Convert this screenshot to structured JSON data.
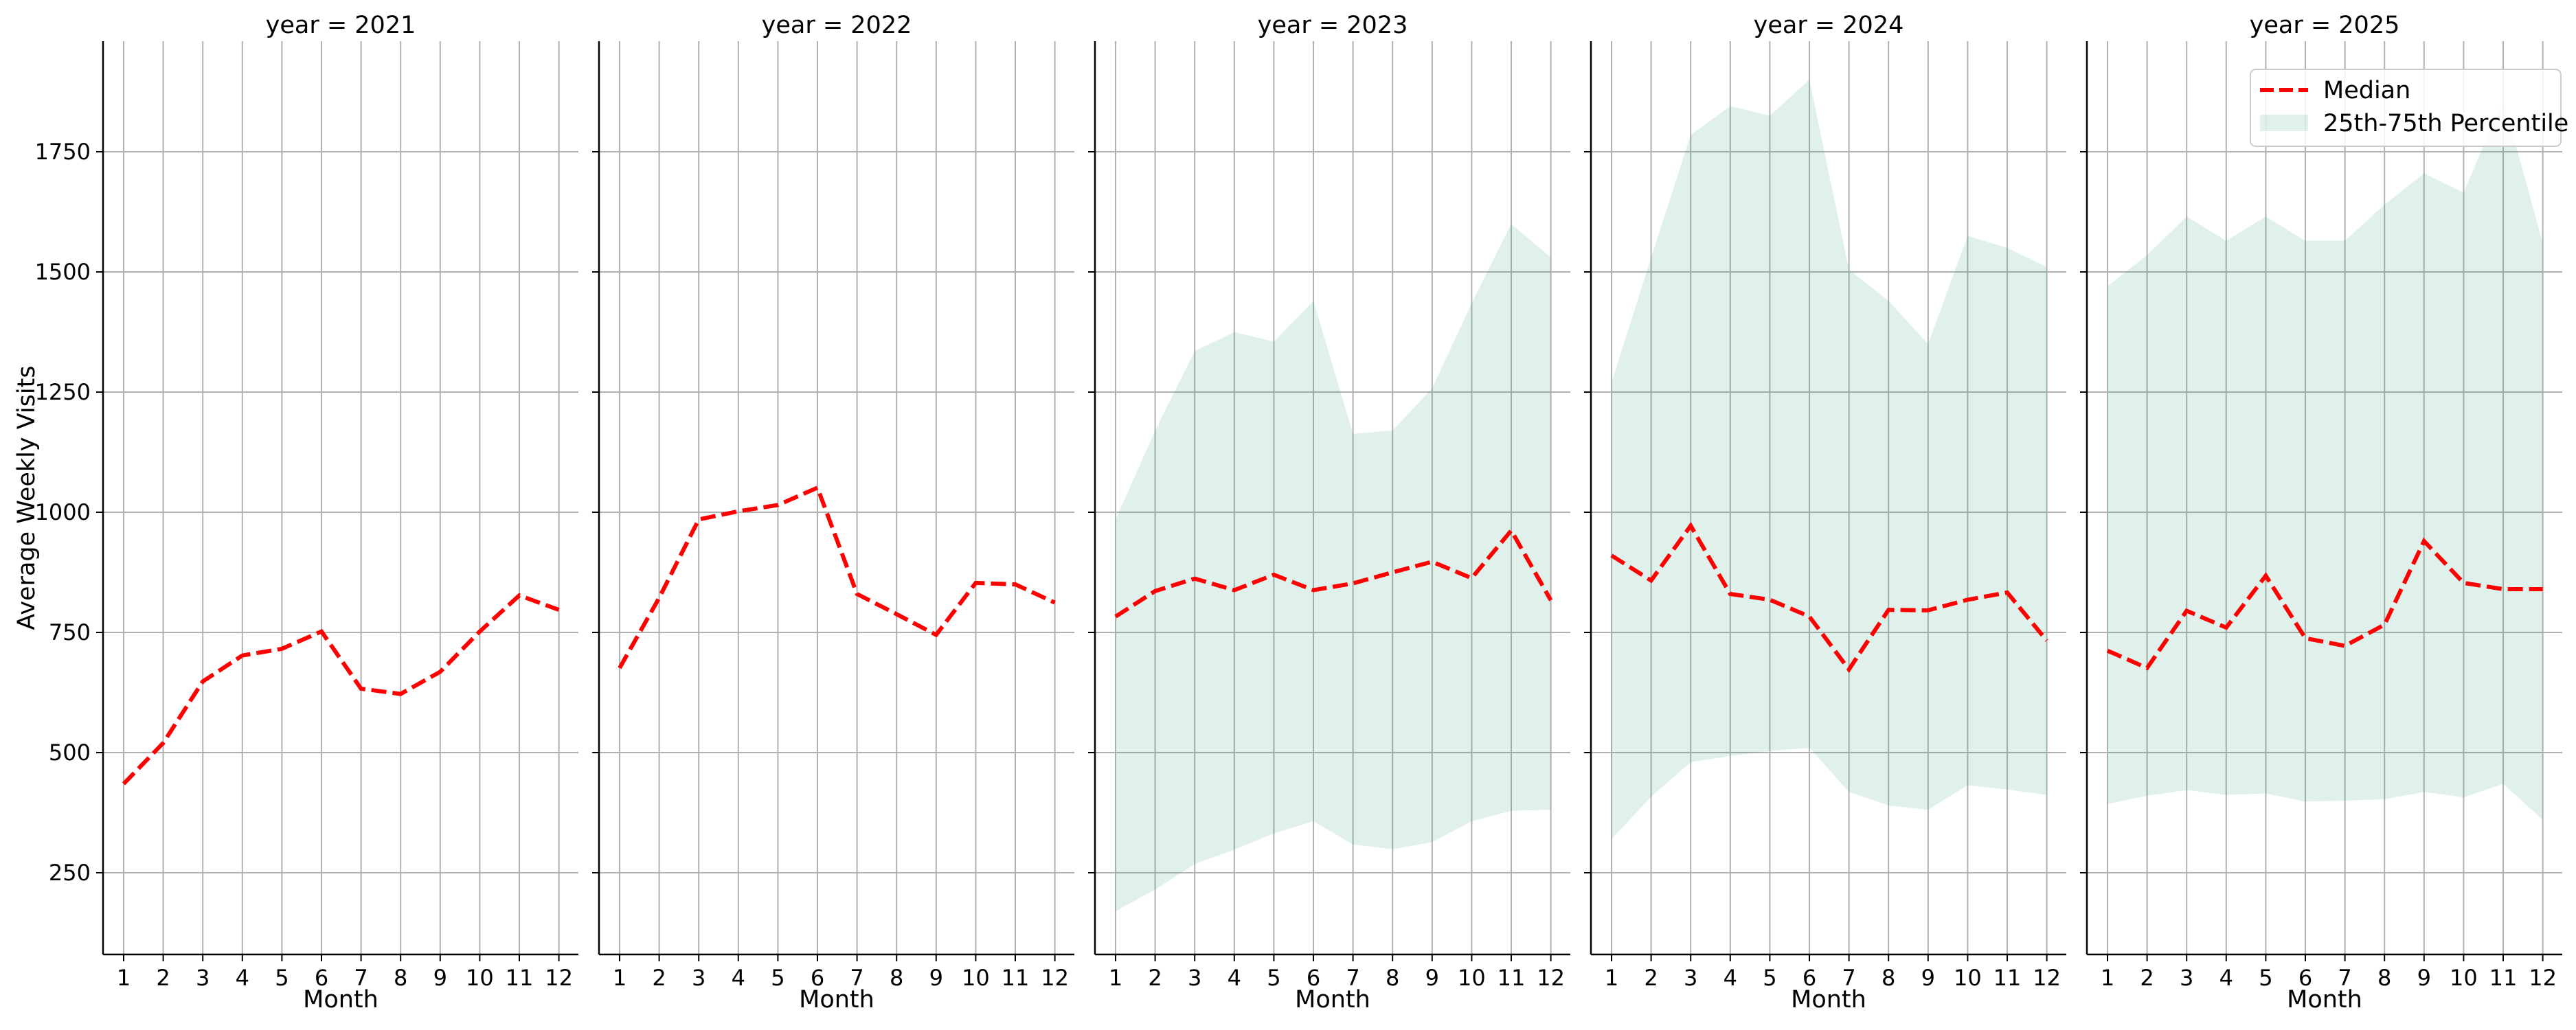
{
  "chart_data": {
    "type": "line",
    "ylabel": "Average Weekly Visits",
    "xlabel": "Month",
    "x": [
      1,
      2,
      3,
      4,
      5,
      6,
      7,
      8,
      9,
      10,
      11,
      12
    ],
    "ylim": [
      80,
      1980
    ],
    "yticks": [
      250,
      500,
      750,
      1000,
      1250,
      1500,
      1750
    ],
    "grid": true,
    "shared_y": true,
    "legend": {
      "placement": "top-right",
      "panel_index": 4,
      "entries": [
        {
          "label": "Median",
          "kind": "dashed-line",
          "color": "#ff0000"
        },
        {
          "label": "25th-75th Percentile",
          "kind": "band",
          "color": "#2ca07c"
        }
      ]
    },
    "colors": {
      "median": "#ff0000",
      "band": "#2ca07c",
      "band_opacity": 0.15,
      "grid": "#b0b0b0"
    },
    "panels": [
      {
        "title": "year = 2021",
        "median": [
          435,
          520,
          648,
          702,
          716,
          752,
          633,
          622,
          668,
          752,
          827,
          797
        ],
        "p25": null,
        "p75": null
      },
      {
        "title": "year = 2022",
        "median": [
          676,
          822,
          985,
          1002,
          1015,
          1051,
          830,
          788,
          745,
          853,
          850,
          812
        ],
        "p25": null,
        "p75": null
      },
      {
        "title": "year = 2023",
        "median": [
          783,
          836,
          862,
          838,
          870,
          838,
          852,
          875,
          897,
          863,
          962,
          817
        ],
        "p25": [
          170,
          215,
          268,
          298,
          332,
          357,
          309,
          299,
          314,
          357,
          379,
          381
        ],
        "p75": [
          985,
          1170,
          1335,
          1375,
          1355,
          1440,
          1163,
          1170,
          1258,
          1435,
          1600,
          1530
        ]
      },
      {
        "title": "year = 2024",
        "median": [
          910,
          858,
          972,
          830,
          818,
          783,
          673,
          797,
          796,
          818,
          833,
          733
        ],
        "p25": [
          320,
          408,
          480,
          493,
          503,
          510,
          418,
          390,
          381,
          432,
          423,
          412
        ],
        "p75": [
          1270,
          1530,
          1785,
          1845,
          1825,
          1900,
          1505,
          1440,
          1350,
          1575,
          1550,
          1510
        ]
      },
      {
        "title": "year = 2025",
        "median": [
          712,
          676,
          795,
          760,
          868,
          738,
          722,
          766,
          940,
          853,
          840,
          840
        ],
        "p25": [
          393,
          410,
          422,
          412,
          415,
          398,
          400,
          403,
          418,
          407,
          435,
          360
        ],
        "p75": [
          1470,
          1535,
          1615,
          1565,
          1615,
          1565,
          1565,
          1640,
          1705,
          1665,
          1860,
          1560
        ]
      }
    ]
  }
}
